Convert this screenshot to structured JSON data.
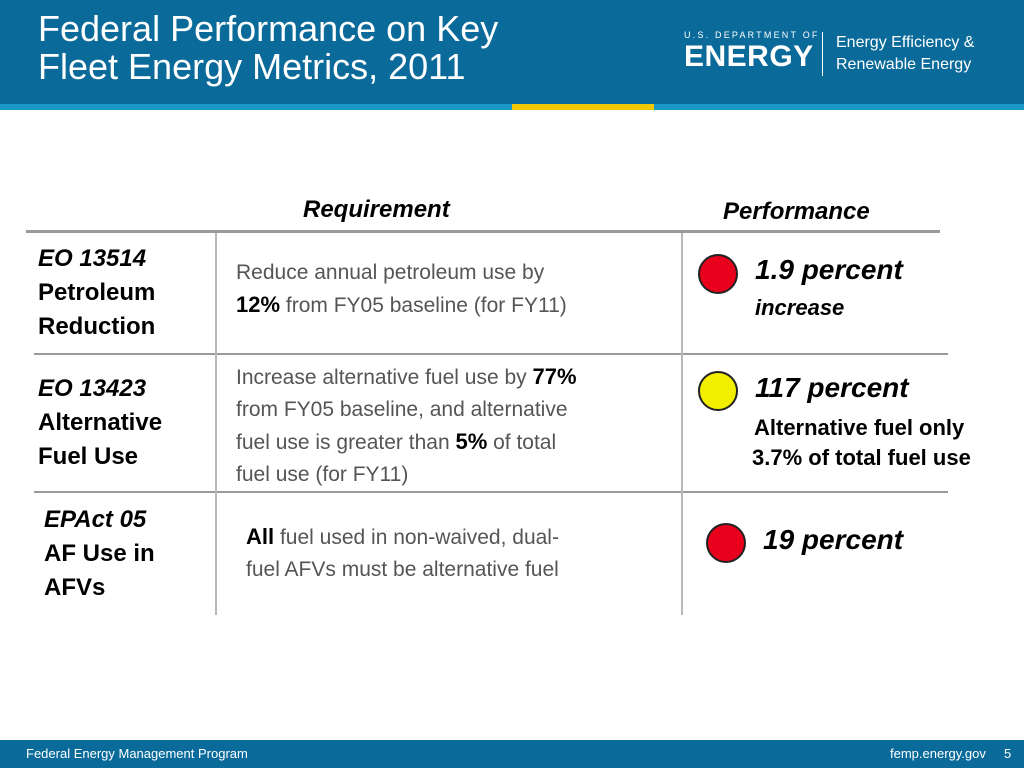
{
  "header": {
    "title_line1": "Federal Performance on Key",
    "title_line2": "Fleet Energy Metrics, 2011",
    "logo": {
      "dept": "U.S. DEPARTMENT OF",
      "name": "ENERGY",
      "office_line1": "Energy Efficiency &",
      "office_line2": "Renewable Energy"
    }
  },
  "columns": {
    "requirement": "Requirement",
    "performance": "Performance"
  },
  "rows": [
    {
      "code": "EO 13514",
      "name_line1": "Petroleum",
      "name_line2": "Reduction",
      "req_line1": "Reduce annual petroleum use by",
      "req_bold1": "12%",
      "req_line2_rest": " from FY05 baseline (for FY11)",
      "status_color": "#e8001c",
      "perf_main": "1.9 percent",
      "perf_sub": "increase"
    },
    {
      "code": "EO 13423",
      "name_line1": "Alternative",
      "name_line2": "Fuel Use",
      "req_line1_pre": "Increase alternative fuel use by ",
      "req_bold1": "77%",
      "req_line2": "from FY05 baseline, and alternative",
      "req_line3_pre": "fuel use is greater than ",
      "req_bold2": "5%",
      "req_line3_post": " of total",
      "req_line4": "fuel use (for FY11)",
      "status_color": "#f2ee00",
      "perf_main": "117 percent",
      "perf_sub1": "Alternative fuel only",
      "perf_sub2": "3.7% of total fuel use"
    },
    {
      "code": "EPAct 05",
      "name_line1": "AF Use in",
      "name_line2": "AFVs",
      "req_bold1": "All",
      "req_line1_rest": " fuel used in non-waived, dual-",
      "req_line2": "fuel AFVs must be alternative fuel",
      "status_color": "#e8001c",
      "perf_main": "19 percent"
    }
  ],
  "footer": {
    "program": "Federal Energy Management Program",
    "url": "femp.energy.gov",
    "page": "5"
  }
}
